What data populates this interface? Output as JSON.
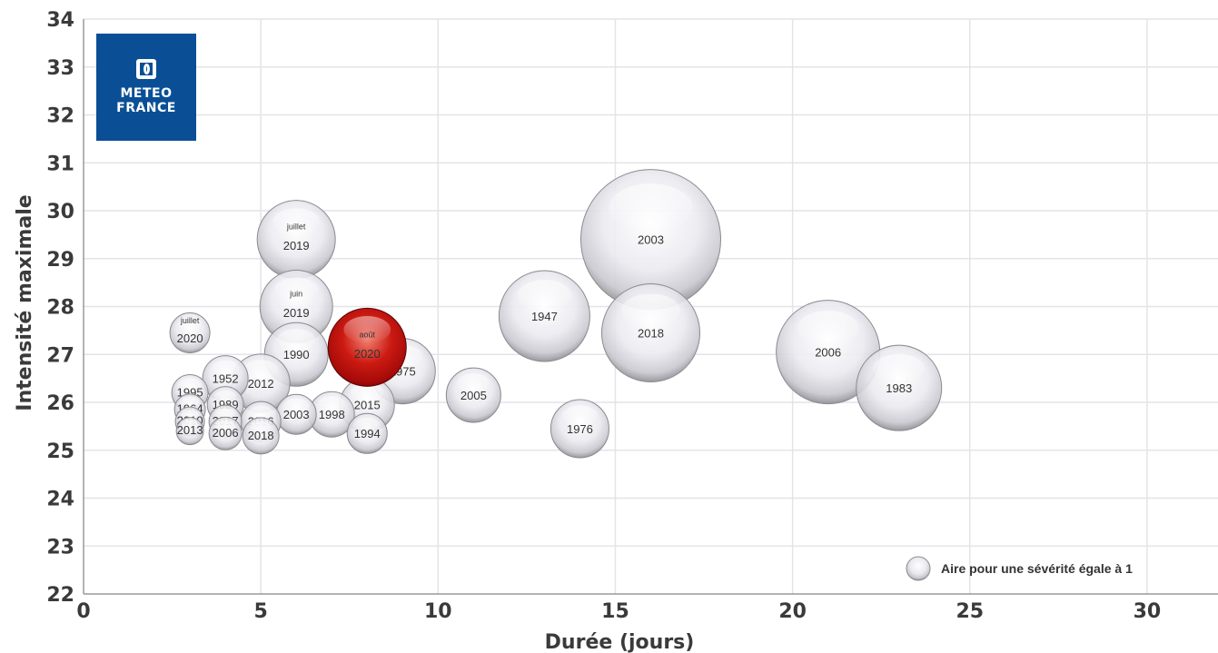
{
  "logo": {
    "line1": "METEO",
    "line2": "FRANCE",
    "color": "#0a4f96"
  },
  "chart_data": {
    "type": "scatter",
    "subtype": "bubble",
    "xlabel": "Durée (jours)",
    "ylabel": "Intensité maximale",
    "xlim": [
      0,
      32
    ],
    "ylim": [
      22,
      34
    ],
    "xticks": [
      0,
      5,
      10,
      15,
      20,
      25,
      30
    ],
    "yticks": [
      22,
      23,
      24,
      25,
      26,
      27,
      28,
      29,
      30,
      31,
      32,
      33,
      34
    ],
    "grid": true,
    "legend": {
      "text": "Aire pour une sévérité égale à 1",
      "position": "bottom-right"
    },
    "colors": {
      "highlight": "#c01010",
      "bubble": "#d8d8e0"
    },
    "bubbles": [
      {
        "label": "2003",
        "sub": "",
        "x": 16,
        "y": 29.4,
        "size": 77,
        "highlight": false
      },
      {
        "label": "2006",
        "sub": "",
        "x": 21,
        "y": 27.05,
        "size": 57,
        "highlight": false
      },
      {
        "label": "1983",
        "sub": "",
        "x": 23,
        "y": 26.3,
        "size": 47,
        "highlight": false
      },
      {
        "label": "1947",
        "sub": "",
        "x": 13,
        "y": 27.8,
        "size": 50,
        "highlight": false
      },
      {
        "label": "2018",
        "sub": "",
        "x": 16,
        "y": 27.45,
        "size": 54,
        "highlight": false
      },
      {
        "label": "1976",
        "sub": "",
        "x": 14,
        "y": 25.45,
        "size": 32,
        "highlight": false
      },
      {
        "label": "2005",
        "sub": "",
        "x": 11,
        "y": 26.15,
        "size": 30,
        "highlight": false
      },
      {
        "label": "1975",
        "sub": "",
        "x": 9,
        "y": 26.65,
        "size": 36,
        "highlight": false
      },
      {
        "label": "2019",
        "sub": "juillet",
        "x": 6,
        "y": 29.4,
        "size": 43,
        "highlight": false
      },
      {
        "label": "2019",
        "sub": "juin",
        "x": 6,
        "y": 28.0,
        "size": 40,
        "highlight": false
      },
      {
        "label": "1990",
        "sub": "",
        "x": 6,
        "y": 27.0,
        "size": 35,
        "highlight": false
      },
      {
        "label": "2003",
        "sub": "",
        "x": 6,
        "y": 25.75,
        "size": 22,
        "highlight": false
      },
      {
        "label": "1998",
        "sub": "",
        "x": 7,
        "y": 25.75,
        "size": 25,
        "highlight": false
      },
      {
        "label": "2015",
        "sub": "",
        "x": 8,
        "y": 25.95,
        "size": 30,
        "highlight": false
      },
      {
        "label": "1994",
        "sub": "",
        "x": 8,
        "y": 25.35,
        "size": 22,
        "highlight": false
      },
      {
        "label": "2020",
        "sub": "août",
        "x": 8,
        "y": 27.15,
        "size": 43,
        "highlight": true
      },
      {
        "label": "2012",
        "sub": "",
        "x": 5,
        "y": 26.4,
        "size": 32,
        "highlight": false
      },
      {
        "label": "2016",
        "sub": "",
        "x": 5,
        "y": 25.6,
        "size": 22,
        "highlight": false
      },
      {
        "label": "2018",
        "sub": "",
        "x": 5,
        "y": 25.3,
        "size": 20,
        "highlight": false
      },
      {
        "label": "1952",
        "sub": "",
        "x": 4,
        "y": 26.5,
        "size": 25,
        "highlight": false
      },
      {
        "label": "1989",
        "sub": "",
        "x": 4,
        "y": 25.95,
        "size": 20,
        "highlight": false
      },
      {
        "label": "2017",
        "sub": "",
        "x": 4,
        "y": 25.6,
        "size": 18,
        "highlight": false
      },
      {
        "label": "2006",
        "sub": "",
        "x": 4,
        "y": 25.35,
        "size": 18,
        "highlight": false
      },
      {
        "label": "2020",
        "sub": "juillet",
        "x": 3,
        "y": 27.45,
        "size": 22,
        "highlight": false
      },
      {
        "label": "1995",
        "sub": "",
        "x": 3,
        "y": 26.2,
        "size": 20,
        "highlight": false
      },
      {
        "label": "1964",
        "sub": "",
        "x": 3,
        "y": 25.85,
        "size": 17,
        "highlight": false
      },
      {
        "label": "2010",
        "sub": "",
        "x": 3,
        "y": 25.6,
        "size": 16,
        "highlight": false
      },
      {
        "label": "2013",
        "sub": "",
        "x": 3,
        "y": 25.4,
        "size": 15,
        "highlight": false
      }
    ]
  }
}
